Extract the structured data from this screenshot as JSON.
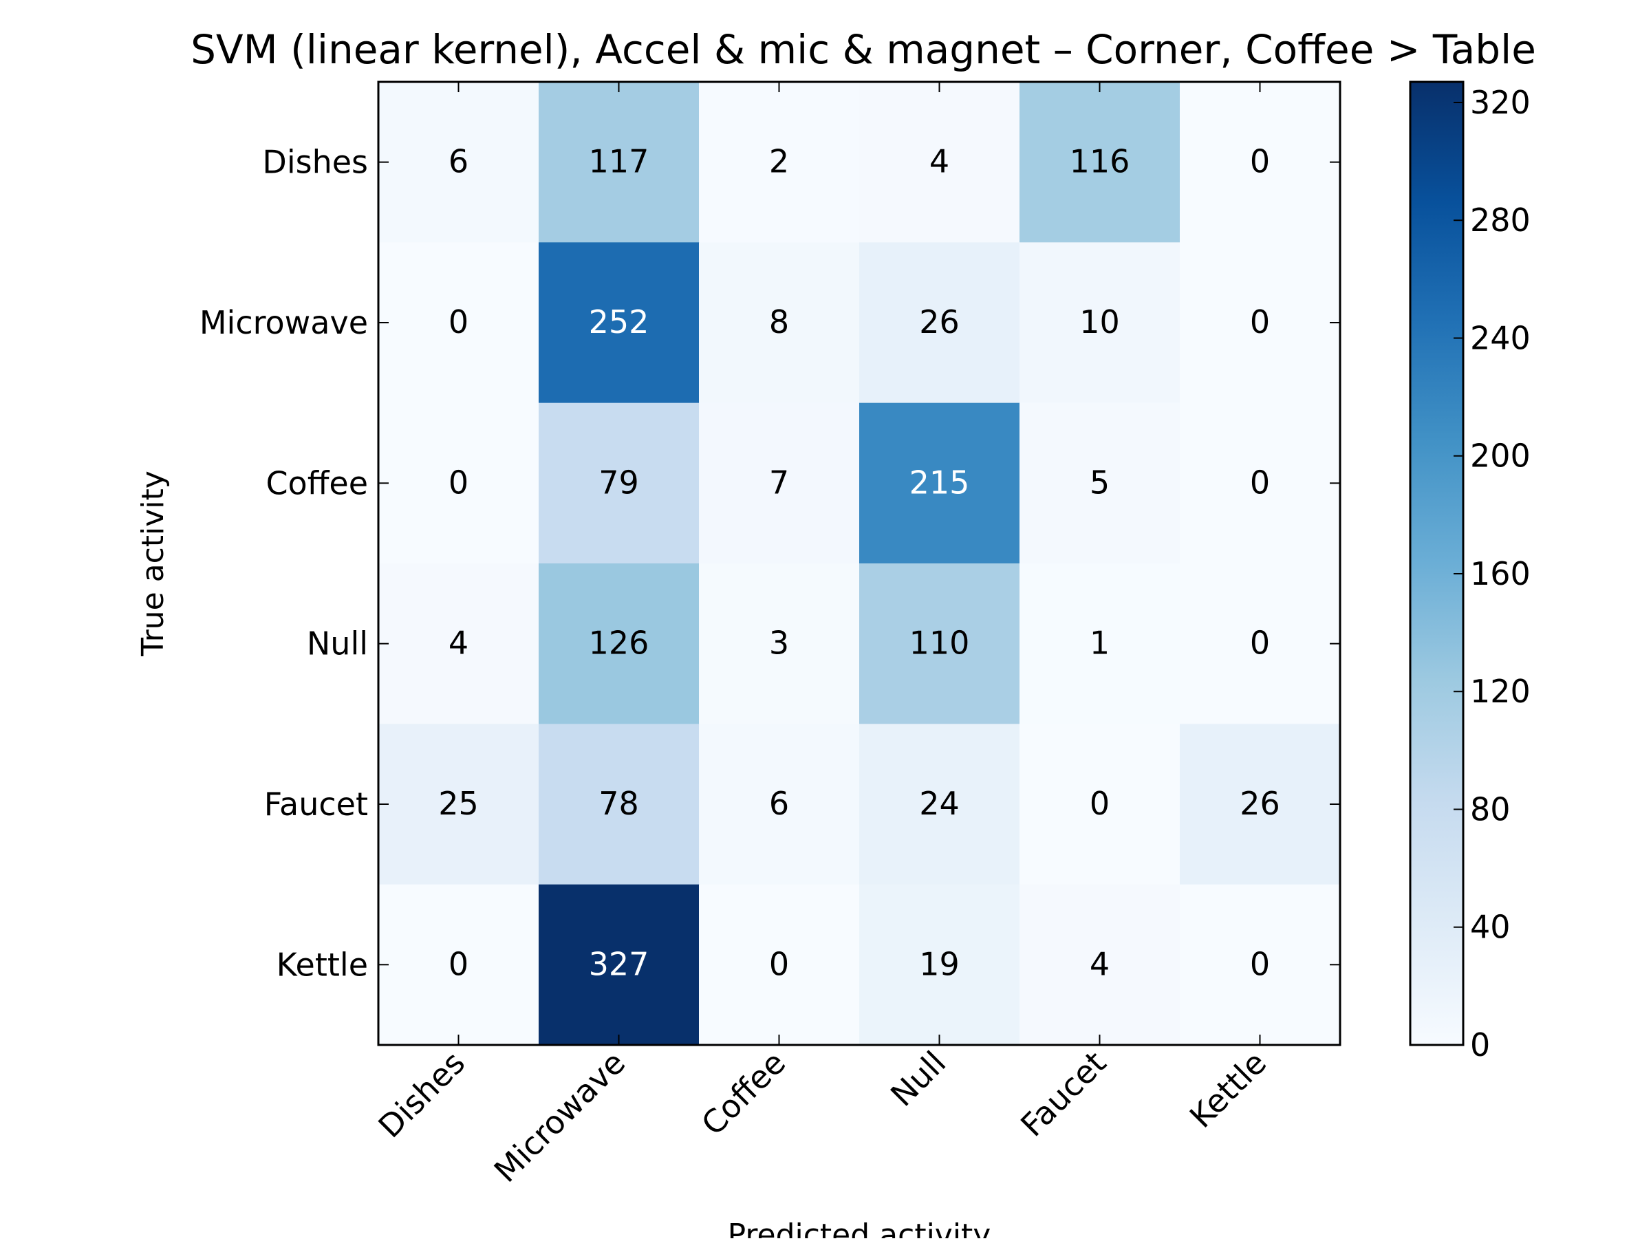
{
  "chart_data": {
    "type": "heatmap",
    "title": "SVM (linear kernel), Accel & mic & magnet – Corner, Coffee > Table",
    "xlabel": "Predicted activity",
    "ylabel": "True activity",
    "x_categories": [
      "Dishes",
      "Microwave",
      "Coffee",
      "Null",
      "Faucet",
      "Kettle"
    ],
    "y_categories": [
      "Dishes",
      "Microwave",
      "Coffee",
      "Null",
      "Faucet",
      "Kettle"
    ],
    "values": [
      [
        6,
        117,
        2,
        4,
        116,
        0
      ],
      [
        0,
        252,
        8,
        26,
        10,
        0
      ],
      [
        0,
        79,
        7,
        215,
        5,
        0
      ],
      [
        4,
        126,
        3,
        110,
        1,
        0
      ],
      [
        25,
        78,
        6,
        24,
        0,
        26
      ],
      [
        0,
        327,
        0,
        19,
        4,
        0
      ]
    ],
    "colormap": "Blues",
    "color_range": [
      0,
      327
    ],
    "colorbar_ticks": [
      "0",
      "40",
      "80",
      "120",
      "160",
      "200",
      "240",
      "280",
      "320"
    ],
    "colors": {
      "cmap_low": "#f7fbff",
      "cmap_high": "#08306b",
      "text_light": "#ffffff",
      "text_dark": "#000000",
      "frame": "#000000"
    },
    "grid": false
  }
}
